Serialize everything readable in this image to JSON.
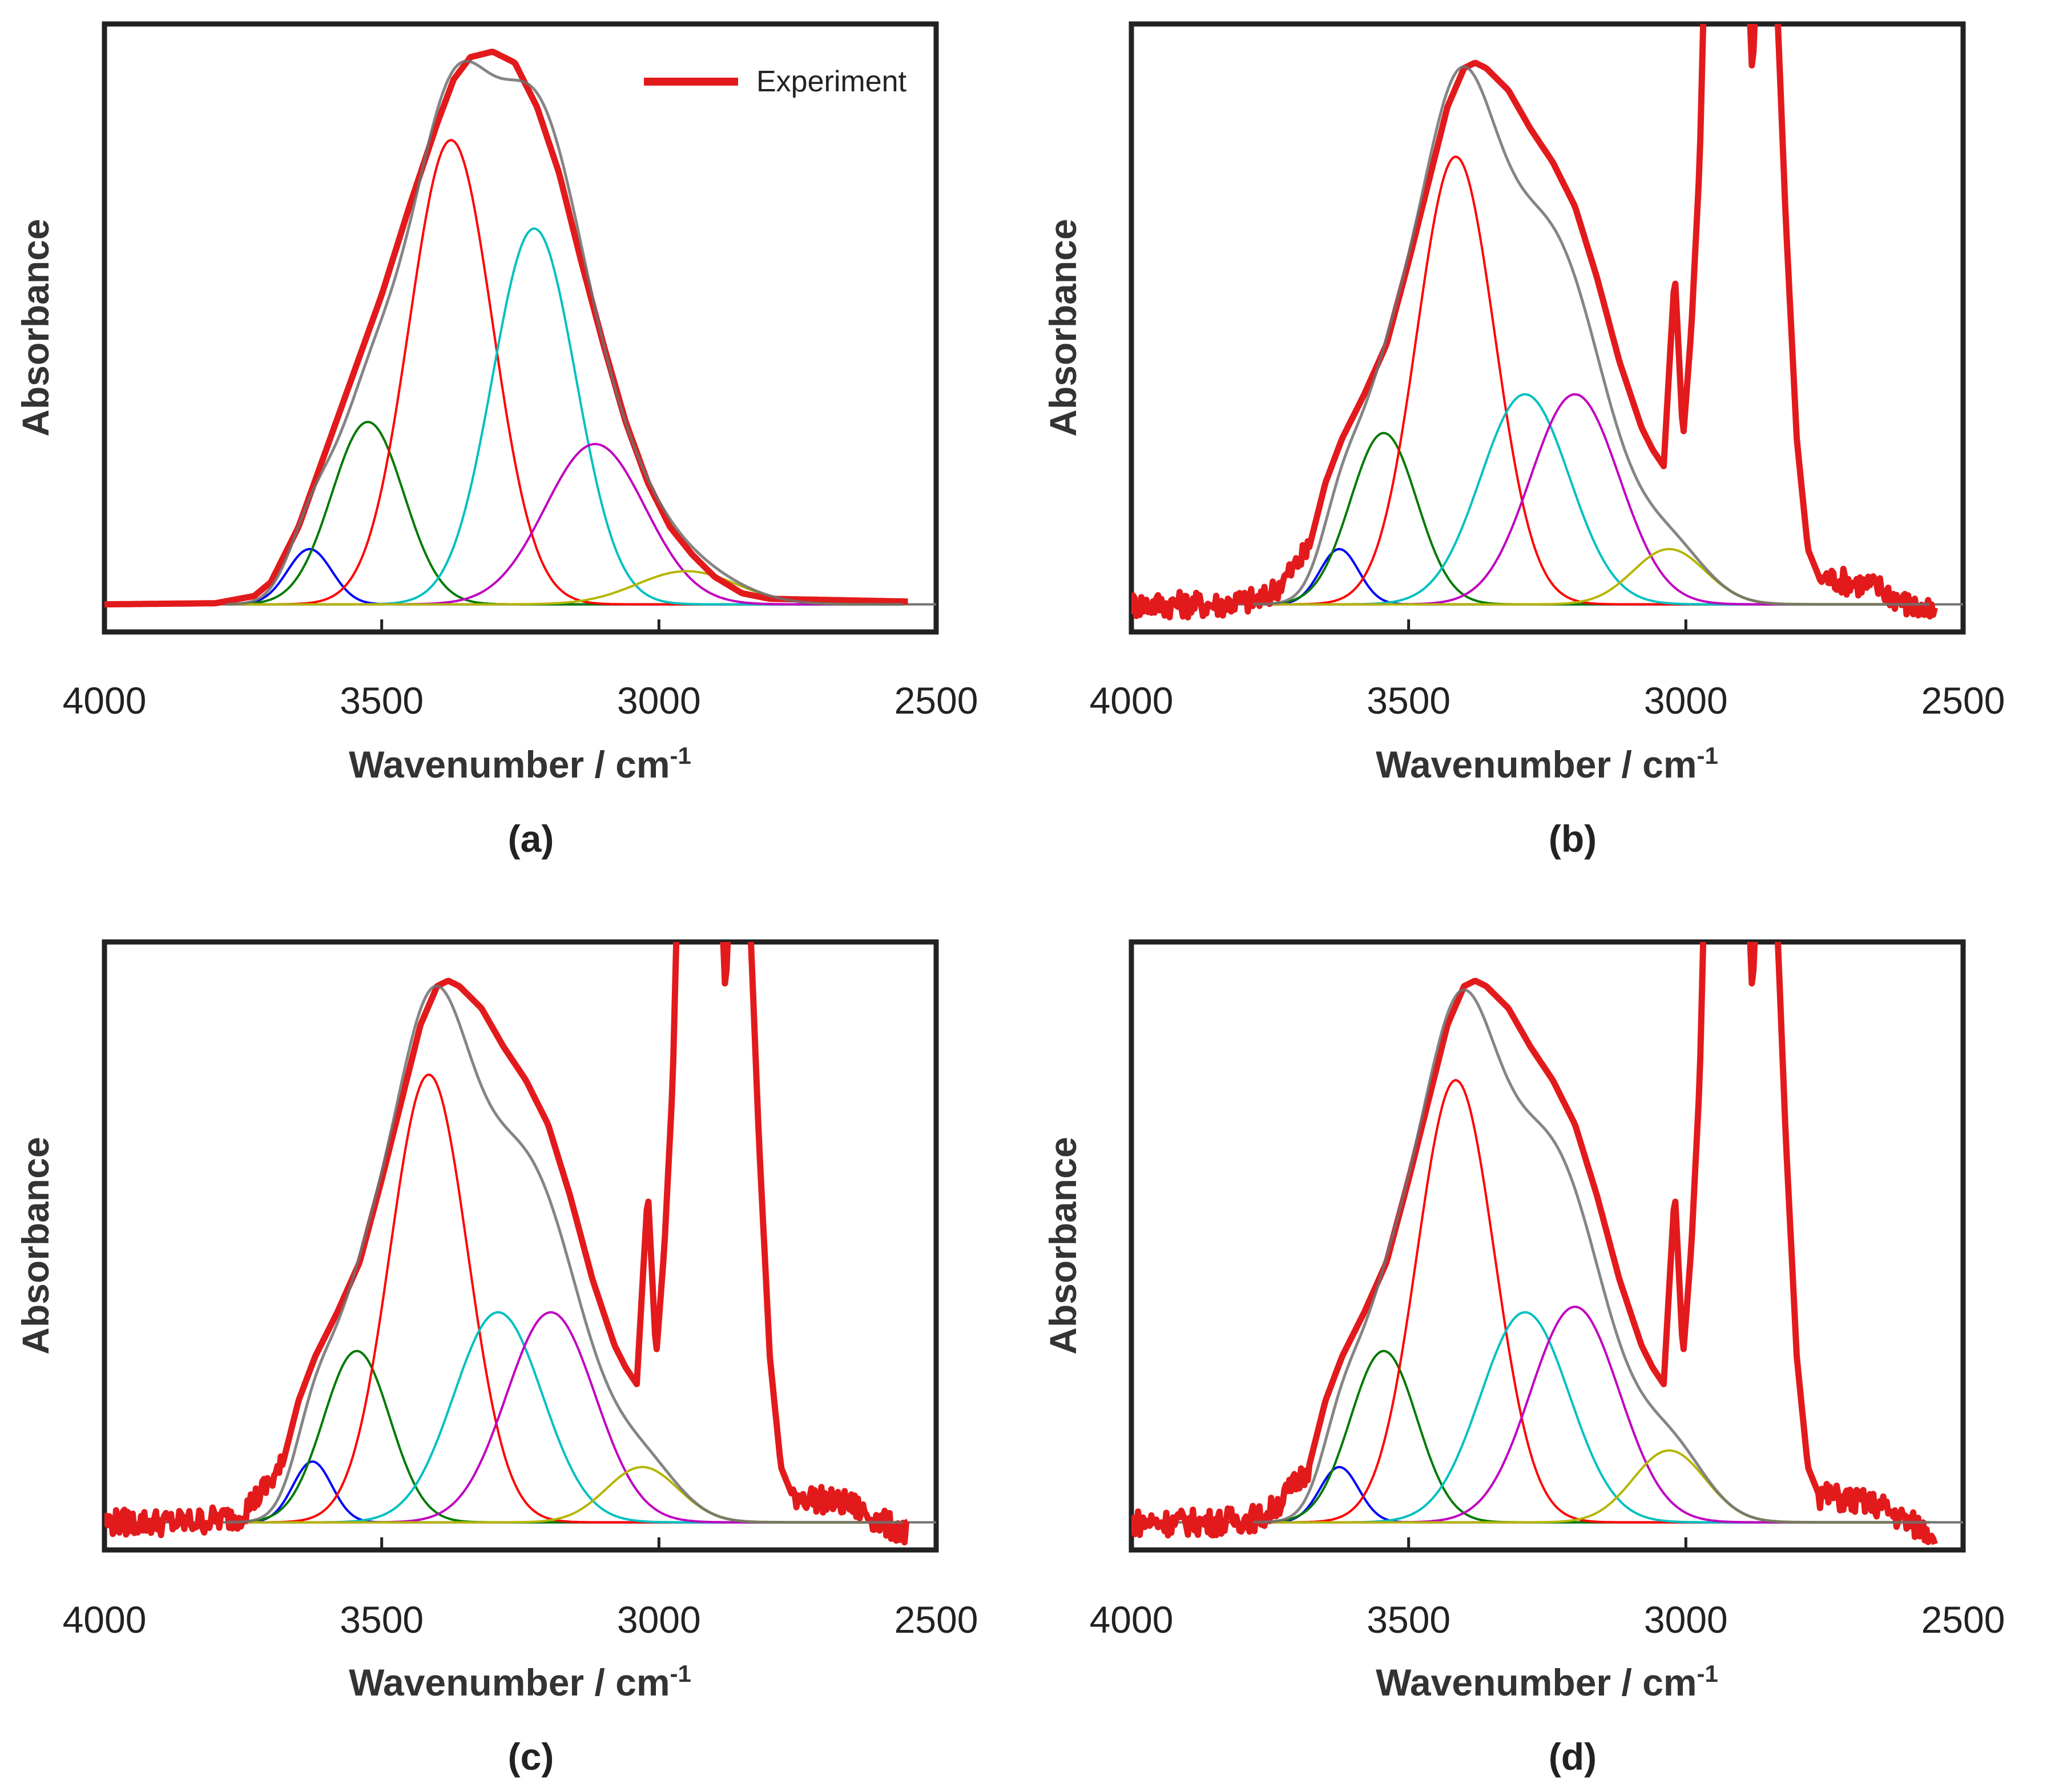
{
  "chart_data": [
    {
      "type": "line",
      "panel_label": "(a)",
      "xlabel": "Wavenumber / cm",
      "xlabel_superscript": "-1",
      "ylabel": "Absorbance",
      "xlim": [
        4000,
        2500
      ],
      "ylim": [
        -0.05,
        1.05
      ],
      "xticks": [
        "4000",
        "3500",
        "3000",
        "2500"
      ],
      "legend": {
        "label": "Experiment",
        "color": "#e31a1c",
        "position": "top-right"
      },
      "baseline": 0,
      "experiment": {
        "points": [
          [
            4000,
            0.0
          ],
          [
            3800,
            0.002
          ],
          [
            3730,
            0.015
          ],
          [
            3700,
            0.04
          ],
          [
            3650,
            0.14
          ],
          [
            3600,
            0.28
          ],
          [
            3550,
            0.42
          ],
          [
            3500,
            0.56
          ],
          [
            3450,
            0.72
          ],
          [
            3400,
            0.87
          ],
          [
            3370,
            0.95
          ],
          [
            3340,
            0.99
          ],
          [
            3300,
            1.0
          ],
          [
            3260,
            0.98
          ],
          [
            3220,
            0.9
          ],
          [
            3180,
            0.78
          ],
          [
            3140,
            0.62
          ],
          [
            3100,
            0.47
          ],
          [
            3060,
            0.33
          ],
          [
            3020,
            0.22
          ],
          [
            2980,
            0.14
          ],
          [
            2940,
            0.09
          ],
          [
            2900,
            0.05
          ],
          [
            2850,
            0.02
          ],
          [
            2800,
            0.01
          ],
          [
            2550,
            0.005
          ]
        ],
        "noise": 0,
        "overshoot": false
      },
      "components": [
        {
          "name": "blue",
          "color": "#0000ff",
          "center": 3630,
          "height": 0.1,
          "width": 40
        },
        {
          "name": "green",
          "color": "#007a00",
          "center": 3525,
          "height": 0.33,
          "width": 65
        },
        {
          "name": "red",
          "color": "#ff0000",
          "center": 3375,
          "height": 0.84,
          "width": 75
        },
        {
          "name": "cyan",
          "color": "#00c0c0",
          "center": 3225,
          "height": 0.68,
          "width": 75
        },
        {
          "name": "magenta",
          "color": "#c000c0",
          "center": 3115,
          "height": 0.29,
          "width": 90
        },
        {
          "name": "olive",
          "color": "#b5b500",
          "center": 2950,
          "height": 0.06,
          "width": 90
        }
      ]
    },
    {
      "type": "line",
      "panel_label": "(b)",
      "xlabel": "Wavenumber / cm",
      "xlabel_superscript": "-1",
      "ylabel": "Absorbance",
      "xlim": [
        4000,
        2500
      ],
      "ylim": [
        -0.05,
        1.05
      ],
      "xticks": [
        "4000",
        "3500",
        "3000",
        "2500"
      ],
      "baseline": 0,
      "experiment": {
        "points": [
          [
            4000,
            0.0
          ],
          [
            3850,
            0.0
          ],
          [
            3760,
            0.01
          ],
          [
            3720,
            0.05
          ],
          [
            3680,
            0.1
          ],
          [
            3650,
            0.22
          ],
          [
            3620,
            0.3
          ],
          [
            3580,
            0.38
          ],
          [
            3540,
            0.47
          ],
          [
            3500,
            0.62
          ],
          [
            3460,
            0.78
          ],
          [
            3430,
            0.9
          ],
          [
            3400,
            0.97
          ],
          [
            3380,
            0.98
          ],
          [
            3360,
            0.97
          ],
          [
            3320,
            0.93
          ],
          [
            3280,
            0.86
          ],
          [
            3240,
            0.8
          ],
          [
            3200,
            0.72
          ],
          [
            3160,
            0.59
          ],
          [
            3120,
            0.44
          ],
          [
            3080,
            0.32
          ],
          [
            3060,
            0.28
          ],
          [
            3040,
            0.25
          ],
          [
            3020,
            0.6
          ],
          [
            3005,
            0.3
          ],
          [
            2990,
            0.5
          ],
          [
            2975,
            0.8
          ],
          [
            2965,
            1.2
          ],
          [
            2940,
            1.2
          ],
          [
            2890,
            1.2
          ],
          [
            2880,
            0.95
          ],
          [
            2870,
            1.2
          ],
          [
            2840,
            1.2
          ],
          [
            2820,
            0.7
          ],
          [
            2800,
            0.3
          ],
          [
            2780,
            0.1
          ],
          [
            2760,
            0.05
          ],
          [
            2700,
            0.04
          ],
          [
            2650,
            0.03
          ],
          [
            2600,
            0.0
          ],
          [
            2550,
            -0.02
          ]
        ],
        "noise": 0.008,
        "overshoot": true
      },
      "components": [
        {
          "name": "blue",
          "color": "#0000ff",
          "center": 3625,
          "height": 0.1,
          "width": 35
        },
        {
          "name": "green",
          "color": "#007a00",
          "center": 3545,
          "height": 0.31,
          "width": 60
        },
        {
          "name": "red",
          "color": "#ff0000",
          "center": 3415,
          "height": 0.81,
          "width": 70
        },
        {
          "name": "cyan",
          "color": "#00c0c0",
          "center": 3290,
          "height": 0.38,
          "width": 80
        },
        {
          "name": "magenta",
          "color": "#c000c0",
          "center": 3200,
          "height": 0.38,
          "width": 80
        },
        {
          "name": "olive",
          "color": "#b5b500",
          "center": 3030,
          "height": 0.1,
          "width": 65
        }
      ]
    },
    {
      "type": "line",
      "panel_label": "(c)",
      "xlabel": "Wavenumber / cm",
      "xlabel_superscript": "-1",
      "ylabel": "Absorbance",
      "xlim": [
        4000,
        2500
      ],
      "ylim": [
        -0.05,
        1.05
      ],
      "xticks": [
        "4000",
        "3500",
        "3000",
        "2500"
      ],
      "baseline": 0,
      "experiment": {
        "points": [
          [
            4000,
            0.0
          ],
          [
            3850,
            0.0
          ],
          [
            3760,
            0.01
          ],
          [
            3720,
            0.05
          ],
          [
            3680,
            0.1
          ],
          [
            3650,
            0.22
          ],
          [
            3620,
            0.3
          ],
          [
            3580,
            0.38
          ],
          [
            3540,
            0.47
          ],
          [
            3500,
            0.62
          ],
          [
            3460,
            0.78
          ],
          [
            3430,
            0.9
          ],
          [
            3400,
            0.97
          ],
          [
            3380,
            0.98
          ],
          [
            3360,
            0.97
          ],
          [
            3320,
            0.93
          ],
          [
            3280,
            0.86
          ],
          [
            3240,
            0.8
          ],
          [
            3200,
            0.72
          ],
          [
            3160,
            0.59
          ],
          [
            3120,
            0.44
          ],
          [
            3080,
            0.32
          ],
          [
            3060,
            0.28
          ],
          [
            3040,
            0.25
          ],
          [
            3020,
            0.6
          ],
          [
            3005,
            0.3
          ],
          [
            2990,
            0.5
          ],
          [
            2975,
            0.8
          ],
          [
            2965,
            1.2
          ],
          [
            2940,
            1.2
          ],
          [
            2890,
            1.2
          ],
          [
            2880,
            0.95
          ],
          [
            2870,
            1.2
          ],
          [
            2840,
            1.2
          ],
          [
            2820,
            0.7
          ],
          [
            2800,
            0.3
          ],
          [
            2780,
            0.1
          ],
          [
            2760,
            0.05
          ],
          [
            2700,
            0.04
          ],
          [
            2650,
            0.03
          ],
          [
            2600,
            0.0
          ],
          [
            2550,
            -0.02
          ]
        ],
        "noise": 0.008,
        "overshoot": true
      },
      "components": [
        {
          "name": "blue",
          "color": "#0000ff",
          "center": 3625,
          "height": 0.11,
          "width": 35
        },
        {
          "name": "green",
          "color": "#007a00",
          "center": 3545,
          "height": 0.31,
          "width": 60
        },
        {
          "name": "red",
          "color": "#ff0000",
          "center": 3415,
          "height": 0.81,
          "width": 70
        },
        {
          "name": "cyan",
          "color": "#00c0c0",
          "center": 3290,
          "height": 0.38,
          "width": 80
        },
        {
          "name": "magenta",
          "color": "#c000c0",
          "center": 3195,
          "height": 0.38,
          "width": 80
        },
        {
          "name": "olive",
          "color": "#b5b500",
          "center": 3030,
          "height": 0.1,
          "width": 65
        }
      ]
    },
    {
      "type": "line",
      "panel_label": "(d)",
      "xlabel": "Wavenumber / cm",
      "xlabel_superscript": "-1",
      "ylabel": "Absorbance",
      "xlim": [
        4000,
        2500
      ],
      "ylim": [
        -0.05,
        1.05
      ],
      "xticks": [
        "4000",
        "3500",
        "3000",
        "2500"
      ],
      "baseline": 0,
      "experiment": {
        "points": [
          [
            4000,
            0.0
          ],
          [
            3850,
            0.0
          ],
          [
            3760,
            0.01
          ],
          [
            3720,
            0.05
          ],
          [
            3680,
            0.1
          ],
          [
            3650,
            0.22
          ],
          [
            3620,
            0.3
          ],
          [
            3580,
            0.38
          ],
          [
            3540,
            0.47
          ],
          [
            3500,
            0.62
          ],
          [
            3460,
            0.78
          ],
          [
            3430,
            0.9
          ],
          [
            3400,
            0.97
          ],
          [
            3380,
            0.98
          ],
          [
            3360,
            0.97
          ],
          [
            3320,
            0.93
          ],
          [
            3280,
            0.86
          ],
          [
            3240,
            0.8
          ],
          [
            3200,
            0.72
          ],
          [
            3160,
            0.59
          ],
          [
            3120,
            0.44
          ],
          [
            3080,
            0.32
          ],
          [
            3060,
            0.28
          ],
          [
            3040,
            0.25
          ],
          [
            3020,
            0.6
          ],
          [
            3005,
            0.3
          ],
          [
            2990,
            0.5
          ],
          [
            2975,
            0.8
          ],
          [
            2965,
            1.2
          ],
          [
            2940,
            1.2
          ],
          [
            2890,
            1.2
          ],
          [
            2880,
            0.95
          ],
          [
            2870,
            1.2
          ],
          [
            2840,
            1.2
          ],
          [
            2820,
            0.7
          ],
          [
            2800,
            0.3
          ],
          [
            2780,
            0.1
          ],
          [
            2760,
            0.05
          ],
          [
            2700,
            0.04
          ],
          [
            2650,
            0.03
          ],
          [
            2600,
            0.0
          ],
          [
            2550,
            -0.02
          ]
        ],
        "noise": 0.008,
        "overshoot": true
      },
      "components": [
        {
          "name": "blue",
          "color": "#0000ff",
          "center": 3625,
          "height": 0.1,
          "width": 35
        },
        {
          "name": "green",
          "color": "#007a00",
          "center": 3545,
          "height": 0.31,
          "width": 60
        },
        {
          "name": "red",
          "color": "#ff0000",
          "center": 3415,
          "height": 0.8,
          "width": 70
        },
        {
          "name": "cyan",
          "color": "#00c0c0",
          "center": 3290,
          "height": 0.38,
          "width": 80
        },
        {
          "name": "magenta",
          "color": "#c000c0",
          "center": 3200,
          "height": 0.39,
          "width": 80
        },
        {
          "name": "olive",
          "color": "#b5b500",
          "center": 3030,
          "height": 0.13,
          "width": 65
        }
      ]
    }
  ],
  "colors": {
    "experiment": "#e31a1c",
    "fit": "#707070",
    "baseline": "#707070",
    "frame": "#222222"
  }
}
